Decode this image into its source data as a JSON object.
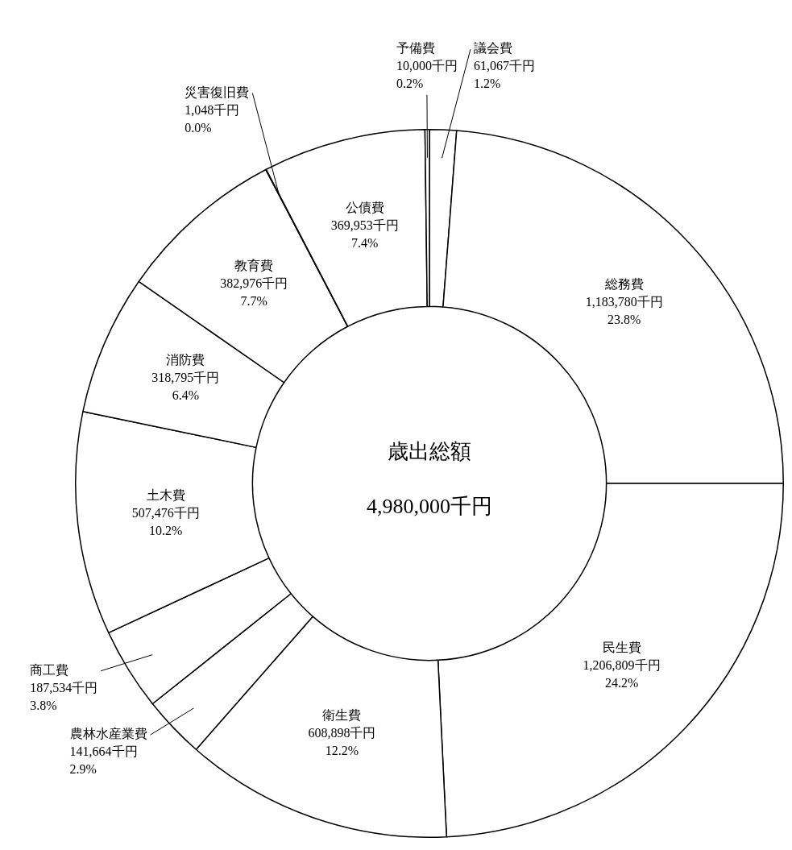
{
  "chart_data": {
    "type": "donut",
    "title": "歳出総額",
    "subtitle": "4,980,000千円",
    "categories": [
      "議会費",
      "総務費",
      "民生費",
      "衛生費",
      "農林水産業費",
      "商工費",
      "土木費",
      "消防費",
      "教育費",
      "災害復旧費",
      "公債費",
      "予備費"
    ],
    "values": [
      61067,
      1183780,
      1206809,
      608898,
      141664,
      187534,
      507476,
      318795,
      382976,
      1048,
      369953,
      10000
    ],
    "colors": [
      "#ffffff",
      "#ffffff",
      "#ffffff",
      "#ffffff",
      "#ffffff",
      "#ffffff",
      "#ffffff",
      "#ffffff",
      "#ffffff",
      "#ffffff",
      "#ffffff",
      "#ffffff"
    ],
    "value_labels": [
      "61,067千円\n1.2%",
      "1,183,780千円\n23.8%",
      "1,206,809千円\n24.2%",
      "608,898千円\n12.2%",
      "141,664千円\n2.9%",
      "187,534千円\n3.8%",
      "507,476千円\n10.2%",
      "318,795千円\n6.4%",
      "382,976千円\n7.7%",
      "1,048千円\n0.0%",
      "369,953千円\n7.4%",
      "10,000千円\n0.2%"
    ]
  }
}
